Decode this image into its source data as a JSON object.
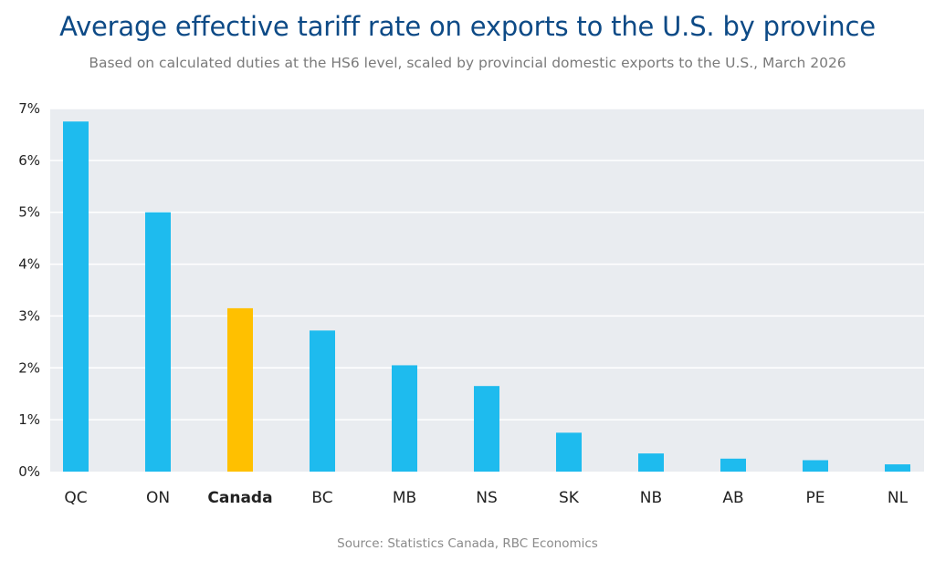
{
  "title": "Average effective tariff rate on exports to the U.S. by province",
  "subtitle": "Based on calculated duties at the HS6 level, scaled by provincial domestic exports to the U.S., March 2026",
  "source": "Source: Statistics Canada, RBC Economics",
  "colors": {
    "title": "#0d4a86",
    "plot_background": "#e9ecf0",
    "gridline": "#ffffff",
    "province_bar": "#1ebbee",
    "canada_bar": "#ffc000"
  },
  "chart_data": {
    "type": "bar",
    "title": "Average effective tariff rate on exports to the U.S. by province",
    "subtitle": "Based on calculated duties at the HS6 level, scaled by provincial domestic exports to the U.S., March 2026",
    "categories": [
      "QC",
      "ON",
      "Canada",
      "BC",
      "MB",
      "NS",
      "SK",
      "NB",
      "AB",
      "PE",
      "NL"
    ],
    "values": [
      6.75,
      5.0,
      3.15,
      2.72,
      2.05,
      1.65,
      0.75,
      0.35,
      0.25,
      0.22,
      0.14
    ],
    "highlight": "Canada",
    "ylim": [
      0,
      7
    ],
    "yticks": [
      0,
      1,
      2,
      3,
      4,
      5,
      6,
      7
    ],
    "ytick_labels": [
      "0%",
      "1%",
      "2%",
      "3%",
      "4%",
      "5%",
      "6%",
      "7%"
    ],
    "xlabel": "",
    "ylabel": "",
    "grid": true,
    "legend": "none"
  }
}
